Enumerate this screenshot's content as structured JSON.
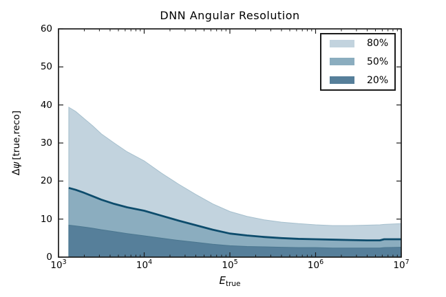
{
  "chart_data": {
    "type": "area",
    "title": "DNN Angular Resolution",
    "xlabel": {
      "base": "E",
      "sub": "true"
    },
    "ylabel": {
      "delta": "Δ",
      "psi": "ψ",
      "bracket": "[true,reco]"
    },
    "x_scale": "log",
    "xlim_log10": [
      3,
      7
    ],
    "ylim": [
      0,
      60
    ],
    "y_ticks": [
      0,
      10,
      20,
      30,
      40,
      50,
      60
    ],
    "x_tick_base": "10",
    "x_major_ticks_exp": [
      3,
      4,
      5,
      6,
      7
    ],
    "grid": false,
    "x_log10": [
      3.12,
      3.2,
      3.3,
      3.4,
      3.5,
      3.65,
      3.8,
      4.0,
      4.2,
      4.4,
      4.6,
      4.8,
      5.0,
      5.2,
      5.4,
      5.6,
      5.8,
      6.0,
      6.2,
      6.4,
      6.6,
      6.75,
      6.8,
      7.0
    ],
    "series": [
      {
        "name": "80%",
        "role": "quantile-band-fill-to-zero",
        "fill": "#c2d3de",
        "edge": "#a5bfcd",
        "values": [
          39.4,
          38.3,
          36.4,
          34.5,
          32.4,
          30.0,
          27.7,
          25.3,
          22.1,
          19.2,
          16.5,
          14.0,
          12.0,
          10.7,
          9.8,
          9.2,
          8.8,
          8.5,
          8.3,
          8.3,
          8.4,
          8.5,
          8.6,
          8.8
        ]
      },
      {
        "name": "50%",
        "role": "quantile-band-fill-to-zero",
        "fill": "#8badbf",
        "edge": "#7399ad",
        "values": [
          18.2,
          17.7,
          16.9,
          16.0,
          15.1,
          14.0,
          13.1,
          12.2,
          10.9,
          9.6,
          8.4,
          7.2,
          6.2,
          5.7,
          5.3,
          5.0,
          4.8,
          4.7,
          4.6,
          4.5,
          4.4,
          4.4,
          4.7,
          4.7
        ]
      },
      {
        "name": "20%",
        "role": "quantile-band-fill-to-zero",
        "fill": "#567f9a",
        "edge": "#4a768f",
        "values": [
          8.4,
          8.2,
          7.9,
          7.6,
          7.2,
          6.7,
          6.2,
          5.6,
          5.0,
          4.4,
          3.9,
          3.4,
          3.0,
          2.8,
          2.7,
          2.6,
          2.5,
          2.5,
          2.4,
          2.4,
          2.4,
          2.4,
          2.5,
          2.6
        ]
      }
    ],
    "median_line": {
      "follows_series": "50%",
      "color": "#0d4c6c",
      "width": 2.8
    },
    "legend": {
      "position": "upper right",
      "entries": [
        {
          "label": "80%",
          "color": "#c2d3de"
        },
        {
          "label": "50%",
          "color": "#8badbf"
        },
        {
          "label": "20%",
          "color": "#567f9a"
        }
      ]
    },
    "axis_color": "#1a1a1a",
    "background": "#ffffff"
  }
}
